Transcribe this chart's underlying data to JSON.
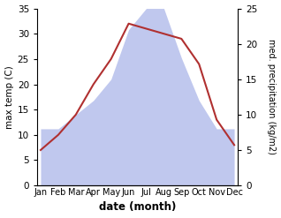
{
  "months": [
    "Jan",
    "Feb",
    "Mar",
    "Apr",
    "May",
    "Jun",
    "Jul",
    "Aug",
    "Sep",
    "Oct",
    "Nov",
    "Dec"
  ],
  "temperature": [
    7,
    10,
    14,
    20,
    25,
    32,
    31,
    30,
    29,
    24,
    13,
    8
  ],
  "precipitation": [
    8,
    8,
    10,
    12,
    15,
    22,
    25,
    25,
    18,
    12,
    8,
    8
  ],
  "temp_color": "#b03030",
  "precip_color": "#c0c8ee",
  "temp_ylim": [
    0,
    35
  ],
  "precip_ylim": [
    0,
    25
  ],
  "temp_yticks": [
    0,
    5,
    10,
    15,
    20,
    25,
    30,
    35
  ],
  "precip_yticks": [
    0,
    5,
    10,
    15,
    20,
    25
  ],
  "ylabel_left": "max temp (C)",
  "ylabel_right": "med. precipitation (kg/m2)",
  "xlabel": "date (month)",
  "figsize": [
    3.18,
    2.47
  ],
  "dpi": 100
}
